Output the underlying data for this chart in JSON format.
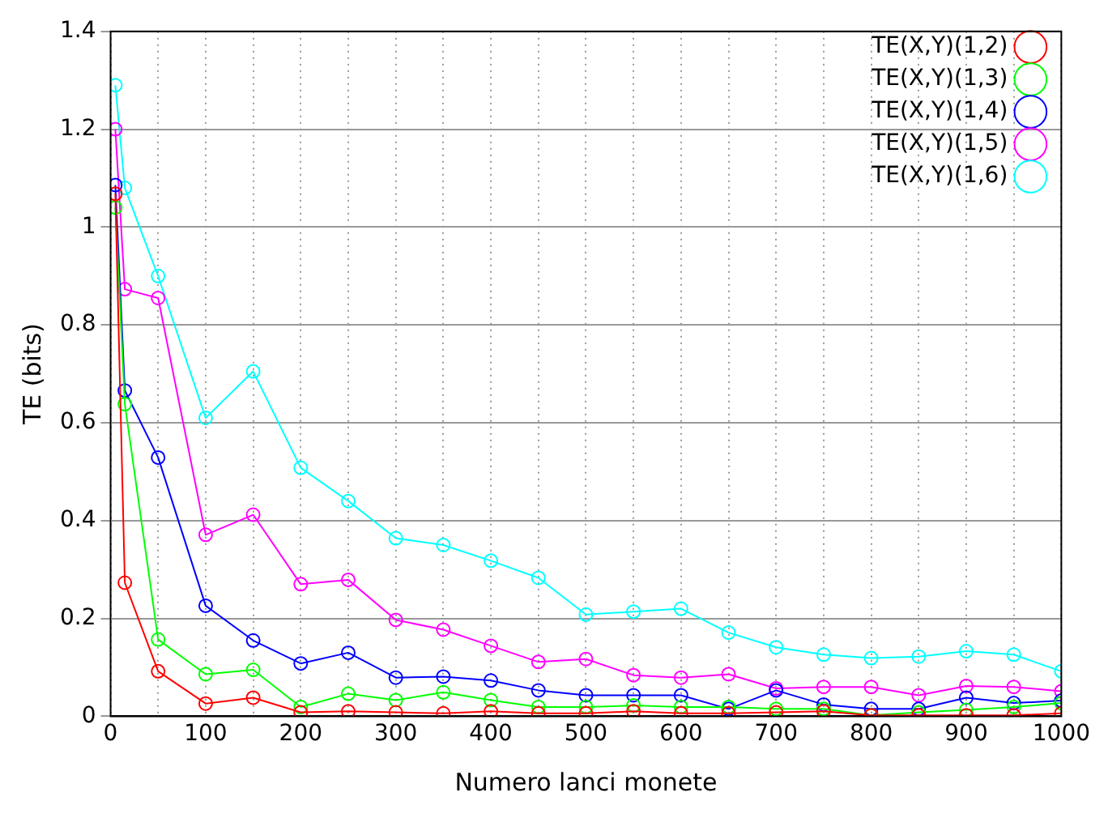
{
  "chart_data": {
    "type": "line",
    "xlabel": "Numero lanci monete",
    "ylabel": "TE (bits)",
    "x": [
      5,
      15,
      50,
      100,
      150,
      200,
      250,
      300,
      350,
      400,
      450,
      500,
      550,
      600,
      650,
      700,
      750,
      800,
      850,
      900,
      950,
      1000
    ],
    "xlim": [
      0,
      1000
    ],
    "xticks": [
      0,
      {
        "value": 50,
        "label": null
      },
      100,
      {
        "value": 150,
        "label": null
      },
      200,
      {
        "value": 250,
        "label": null
      },
      300,
      {
        "value": 350,
        "label": null
      },
      400,
      {
        "value": 450,
        "label": null
      },
      500,
      {
        "value": 550,
        "label": null
      },
      600,
      {
        "value": 650,
        "label": null
      },
      700,
      {
        "value": 750,
        "label": null
      },
      800,
      {
        "value": 850,
        "label": null
      },
      900,
      {
        "value": 950,
        "label": null
      },
      1000
    ],
    "ylim": [
      0,
      1.4
    ],
    "yticks": [
      0,
      0.2,
      0.4,
      0.6,
      0.8,
      1,
      1.2,
      1.4
    ],
    "grid": true,
    "legend": "top right",
    "marker": "circle",
    "line_style": "solid",
    "series": [
      {
        "name": "TE(X,Y)(1,2)",
        "color": "#ff0000",
        "values": [
          1.068,
          0.273,
          0.092,
          0.026,
          0.038,
          0.008,
          0.01,
          0.008,
          0.006,
          0.01,
          0.006,
          0.006,
          0.01,
          0.006,
          0.006,
          0.008,
          0.01,
          0.002,
          0.002,
          0.002,
          0.002,
          0.006
        ]
      },
      {
        "name": "TE(X,Y)(1,3)",
        "color": "#00ff00",
        "values": [
          1.04,
          0.638,
          0.157,
          0.086,
          0.095,
          0.019,
          0.046,
          0.033,
          0.049,
          0.033,
          0.019,
          0.019,
          0.022,
          0.019,
          0.019,
          0.015,
          0.015,
          0.002,
          0.008,
          0.013,
          0.019,
          0.027
        ]
      },
      {
        "name": "TE(X,Y)(1,4)",
        "color": "#0000ff",
        "values": [
          1.086,
          0.666,
          0.529,
          0.226,
          0.155,
          0.108,
          0.13,
          0.079,
          0.081,
          0.073,
          0.053,
          0.043,
          0.043,
          0.043,
          0.015,
          0.053,
          0.024,
          0.015,
          0.015,
          0.038,
          0.027,
          0.032
        ]
      },
      {
        "name": "TE(X,Y)(1,5)",
        "color": "#ff00ff",
        "values": [
          1.2,
          0.873,
          0.855,
          0.371,
          0.412,
          0.27,
          0.279,
          0.197,
          0.177,
          0.144,
          0.111,
          0.117,
          0.084,
          0.079,
          0.086,
          0.057,
          0.06,
          0.06,
          0.043,
          0.062,
          0.06,
          0.051
        ]
      },
      {
        "name": "TE(X,Y)(1,6)",
        "color": "#00ffff",
        "values": [
          1.29,
          1.08,
          0.9,
          0.61,
          0.705,
          0.508,
          0.44,
          0.364,
          0.35,
          0.318,
          0.283,
          0.208,
          0.214,
          0.22,
          0.171,
          0.141,
          0.126,
          0.119,
          0.122,
          0.133,
          0.126,
          0.092
        ]
      }
    ]
  }
}
